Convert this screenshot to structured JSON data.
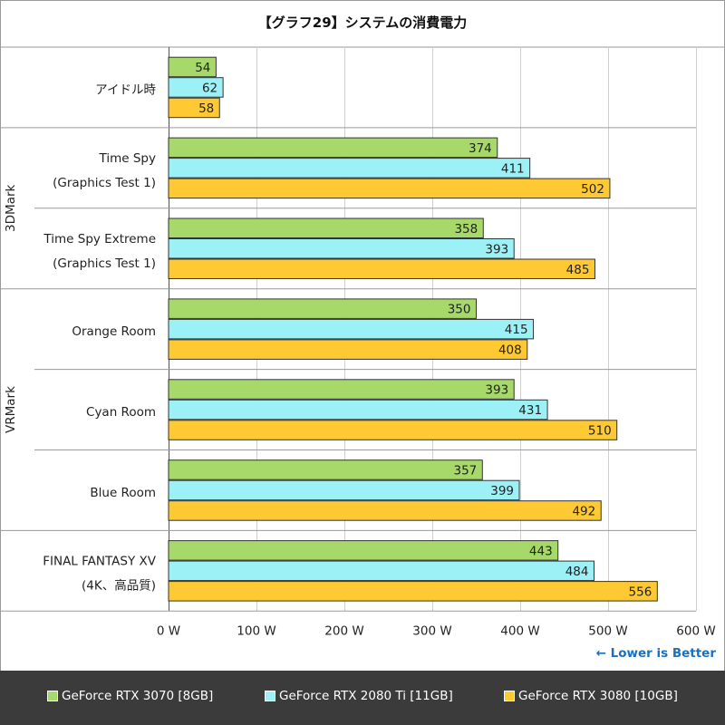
{
  "title": "【グラフ29】システムの消費電力",
  "note": "← Lower is Better",
  "chart_data": {
    "type": "bar",
    "orientation": "horizontal",
    "unit": "W",
    "xlim": [
      0,
      600
    ],
    "ticks": [
      "0 W",
      "100 W",
      "200 W",
      "300 W",
      "400 W",
      "500 W",
      "600 W"
    ],
    "grid": true,
    "legend_position": "bottom",
    "groups": [
      {
        "name": "",
        "categories": [
          {
            "label": [
              "アイドル時"
            ],
            "values": [
              54,
              62,
              58
            ]
          }
        ]
      },
      {
        "name": "3DMark",
        "categories": [
          {
            "label": [
              "Time Spy",
              "(Graphics Test 1)"
            ],
            "values": [
              374,
              411,
              502
            ]
          },
          {
            "label": [
              "Time Spy Extreme",
              "(Graphics Test 1)"
            ],
            "values": [
              358,
              393,
              485
            ]
          }
        ]
      },
      {
        "name": "VRMark",
        "categories": [
          {
            "label": [
              "Orange Room"
            ],
            "values": [
              350,
              415,
              408
            ]
          },
          {
            "label": [
              "Cyan Room"
            ],
            "values": [
              393,
              431,
              510
            ]
          },
          {
            "label": [
              "Blue Room"
            ],
            "values": [
              357,
              399,
              492
            ]
          }
        ]
      },
      {
        "name": "",
        "categories": [
          {
            "label": [
              "FINAL FANTASY XV",
              "(4K、高品質)"
            ],
            "values": [
              443,
              484,
              556
            ]
          }
        ]
      }
    ],
    "series": [
      {
        "name": "GeForce RTX 3070 [8GB]",
        "color": "#a6d96a"
      },
      {
        "name": "GeForce RTX 2080 Ti [11GB]",
        "color": "#9cf1f6"
      },
      {
        "name": "GeForce RTX 3080 [10GB]",
        "color": "#ffc933"
      }
    ]
  }
}
